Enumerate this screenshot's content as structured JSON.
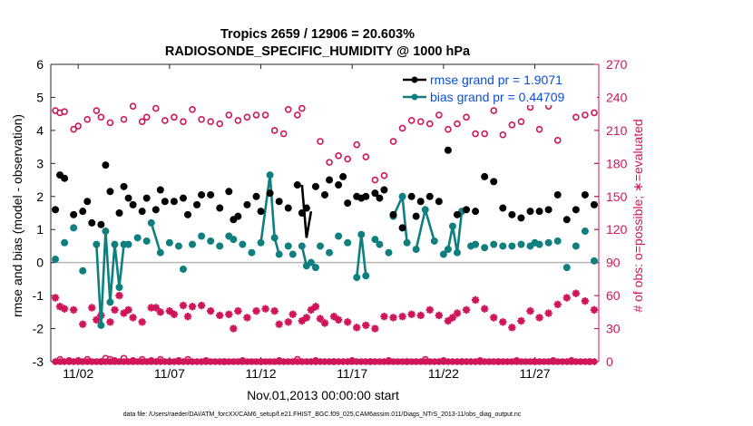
{
  "chart_data": {
    "type": "line",
    "title": "Tropics 2659 / 12906 = 20.603%",
    "subtitle": "RADIOSONDE_SPECIFIC_HUMIDITY @ 1000 hPa",
    "xlabel": "Nov.01,2013 00:00:00 start",
    "ylabel_left": "rmse and bias (model - observation)",
    "ylabel_right": "# of obs: o=possible; ∗=evaluated",
    "footnote": "data file: /Users/raeder/DAI/ATM_forcXX/CAM6_setup/f.e21.FHIST_BGC.f09_025.CAM6assim.011/Diags_NTrS_2013-11/obs_diag_output.nc",
    "xlim": [
      0.5,
      30.5
    ],
    "ylim_left": [
      -3,
      6
    ],
    "ylim_right": [
      0,
      270
    ],
    "xticks": [
      {
        "pos": 2,
        "label": "11/02"
      },
      {
        "pos": 7,
        "label": "11/07"
      },
      {
        "pos": 12,
        "label": "11/12"
      },
      {
        "pos": 17,
        "label": "11/17"
      },
      {
        "pos": 22,
        "label": "11/22"
      },
      {
        "pos": 27,
        "label": "11/27"
      }
    ],
    "yticks_left": [
      "-3",
      "-2",
      "-1",
      "0",
      "1",
      "2",
      "3",
      "4",
      "5",
      "6"
    ],
    "yticks_right": [
      "0",
      "30",
      "60",
      "90",
      "120",
      "150",
      "180",
      "210",
      "240",
      "270"
    ],
    "legend": [
      {
        "name": "rmse grand pr = 1.9071",
        "color": "#000000"
      },
      {
        "name": "bias grand pr = 0.44709",
        "color": "#0f7f7f"
      }
    ],
    "colors": {
      "rmse": "#000000",
      "bias": "#0f7f7f",
      "counts": "#d0145a",
      "zero_line": "#b4b4b4",
      "legend_text": "#0a4fd6"
    },
    "rmse": [
      [
        0.75,
        1.6
      ],
      [
        1.0,
        2.65
      ],
      [
        1.25,
        2.55
      ],
      [
        1.75,
        1.45
      ],
      [
        2.25,
        1.55
      ],
      [
        2.5,
        1.85
      ],
      [
        2.75,
        1.2
      ],
      [
        3.25,
        1.15
      ],
      [
        3.5,
        2.95
      ],
      [
        3.75,
        2.15
      ],
      [
        4.25,
        1.5
      ],
      [
        4.5,
        2.3
      ],
      [
        4.75,
        1.95
      ],
      [
        5.0,
        1.75
      ],
      [
        5.5,
        1.55
      ],
      [
        5.75,
        1.95
      ],
      [
        6.25,
        1.6
      ],
      [
        6.5,
        2.2
      ],
      [
        6.75,
        1.85
      ],
      [
        7.25,
        1.85
      ],
      [
        7.75,
        1.95
      ],
      [
        8.0,
        1.45
      ],
      [
        8.5,
        1.75
      ],
      [
        8.75,
        2.05
      ],
      [
        9.25,
        2.05
      ],
      [
        9.75,
        1.65
      ],
      [
        10.25,
        2.15
      ],
      [
        10.5,
        1.3
      ],
      [
        10.75,
        1.4
      ],
      [
        11.25,
        1.75
      ],
      [
        11.75,
        2.0
      ],
      [
        12.0,
        1.55
      ],
      [
        12.5,
        2.1
      ],
      [
        13.0,
        1.85
      ],
      [
        13.5,
        1.65
      ],
      [
        14.0,
        2.35
      ],
      [
        14.25,
        1.5
      ],
      [
        14.5,
        1.65
      ],
      [
        15.0,
        2.3
      ],
      [
        15.5,
        2.05
      ],
      [
        15.75,
        2.5
      ],
      [
        16.25,
        2.35
      ],
      [
        16.5,
        2.6
      ],
      [
        16.75,
        1.8
      ],
      [
        17.25,
        2.0
      ],
      [
        17.5,
        1.95
      ],
      [
        17.75,
        2.0
      ],
      [
        18.25,
        2.1
      ],
      [
        18.5,
        1.95
      ],
      [
        18.75,
        2.2
      ],
      [
        19.25,
        1.45
      ],
      [
        19.75,
        1.05
      ],
      [
        20.25,
        2.0
      ],
      [
        20.5,
        1.4
      ],
      [
        20.75,
        1.85
      ],
      [
        21.25,
        2.0
      ],
      [
        21.75,
        1.85
      ],
      [
        22.25,
        3.4
      ],
      [
        22.75,
        1.45
      ],
      [
        23.25,
        1.6
      ],
      [
        23.75,
        1.55
      ],
      [
        24.25,
        2.6
      ],
      [
        24.75,
        2.45
      ],
      [
        25.25,
        1.65
      ],
      [
        25.75,
        1.45
      ],
      [
        26.25,
        1.35
      ],
      [
        26.75,
        1.55
      ],
      [
        27.25,
        1.55
      ],
      [
        27.75,
        1.6
      ],
      [
        28.25,
        2.05
      ],
      [
        28.75,
        1.3
      ],
      [
        29.25,
        1.6
      ],
      [
        29.75,
        2.05
      ],
      [
        30.25,
        1.75
      ]
    ],
    "rmse_line": [
      [
        14.25,
        2.35
      ],
      [
        14.5,
        0.75
      ],
      [
        14.75,
        1.55
      ]
    ],
    "bias": [
      [
        0.75,
        0.1
      ],
      [
        1.25,
        0.6
      ],
      [
        1.75,
        1.05
      ],
      [
        2.25,
        -0.25
      ],
      [
        3.0,
        0.55
      ],
      [
        3.25,
        -1.9
      ],
      [
        3.5,
        0.95
      ],
      [
        3.75,
        -1.2
      ],
      [
        4.0,
        0.55
      ],
      [
        4.25,
        -0.75
      ],
      [
        4.5,
        0.55
      ],
      [
        4.75,
        0.55
      ],
      [
        5.25,
        0.75
      ],
      [
        5.75,
        0.65
      ],
      [
        6.0,
        1.2
      ],
      [
        6.5,
        0.3
      ],
      [
        7.0,
        0.6
      ],
      [
        7.5,
        0.5
      ],
      [
        7.75,
        -0.2
      ],
      [
        8.25,
        0.55
      ],
      [
        8.75,
        0.8
      ],
      [
        9.25,
        0.65
      ],
      [
        9.75,
        0.5
      ],
      [
        10.25,
        0.8
      ],
      [
        10.5,
        0.7
      ],
      [
        11.0,
        0.55
      ],
      [
        11.5,
        0.3
      ],
      [
        12.0,
        0.6
      ],
      [
        12.5,
        2.65
      ],
      [
        12.75,
        0.75
      ],
      [
        13.0,
        0.25
      ],
      [
        13.5,
        0.5
      ],
      [
        13.75,
        0.25
      ],
      [
        14.25,
        0.5
      ],
      [
        14.5,
        -0.1
      ],
      [
        14.75,
        0.0
      ],
      [
        15.0,
        -0.15
      ],
      [
        15.25,
        0.5
      ],
      [
        15.75,
        0.3
      ],
      [
        16.25,
        0.8
      ],
      [
        16.75,
        0.6
      ],
      [
        17.25,
        -0.45
      ],
      [
        17.5,
        0.85
      ],
      [
        17.75,
        -0.4
      ],
      [
        18.25,
        0.7
      ],
      [
        18.5,
        0.55
      ],
      [
        19.0,
        0.3
      ],
      [
        19.25,
        1.4
      ],
      [
        19.75,
        2.0
      ],
      [
        20.0,
        0.6
      ],
      [
        20.5,
        0.4
      ],
      [
        21.0,
        1.6
      ],
      [
        21.5,
        0.65
      ],
      [
        22.0,
        0.25
      ],
      [
        22.25,
        0.4
      ],
      [
        22.5,
        1.1
      ],
      [
        22.75,
        0.3
      ],
      [
        23.0,
        1.55
      ],
      [
        23.5,
        0.5
      ],
      [
        23.75,
        0.55
      ],
      [
        24.25,
        0.45
      ],
      [
        24.75,
        0.55
      ],
      [
        25.25,
        0.5
      ],
      [
        25.75,
        0.5
      ],
      [
        26.25,
        0.55
      ],
      [
        26.75,
        0.5
      ],
      [
        27.0,
        0.6
      ],
      [
        27.25,
        0.55
      ],
      [
        27.75,
        0.6
      ],
      [
        28.25,
        0.65
      ],
      [
        28.75,
        -0.15
      ],
      [
        29.25,
        0.5
      ],
      [
        29.75,
        0.95
      ],
      [
        30.25,
        0.05
      ]
    ],
    "bias_lines": [
      [
        [
          3.0,
          0.55
        ],
        [
          3.25,
          -1.9
        ],
        [
          3.5,
          0.95
        ],
        [
          3.75,
          -1.2
        ],
        [
          4.0,
          0.55
        ],
        [
          4.25,
          -0.75
        ],
        [
          4.5,
          0.55
        ]
      ],
      [
        [
          6.0,
          1.2
        ],
        [
          6.5,
          0.3
        ]
      ],
      [
        [
          12.0,
          0.6
        ],
        [
          12.5,
          2.65
        ],
        [
          12.75,
          0.75
        ],
        [
          13.0,
          0.25
        ]
      ],
      [
        [
          14.25,
          0.5
        ],
        [
          14.5,
          -0.1
        ],
        [
          14.75,
          0.0
        ],
        [
          15.0,
          -0.15
        ]
      ],
      [
        [
          17.25,
          -0.45
        ],
        [
          17.5,
          0.85
        ],
        [
          17.75,
          -0.4
        ]
      ],
      [
        [
          19.25,
          1.4
        ],
        [
          19.75,
          2.0
        ],
        [
          20.0,
          0.6
        ]
      ],
      [
        [
          20.5,
          0.4
        ],
        [
          21.0,
          1.6
        ],
        [
          21.5,
          0.65
        ]
      ],
      [
        [
          22.0,
          0.25
        ],
        [
          22.25,
          0.4
        ],
        [
          22.5,
          1.1
        ],
        [
          22.75,
          0.3
        ],
        [
          23.0,
          1.55
        ]
      ]
    ],
    "possible": [
      [
        0.75,
        228
      ],
      [
        1.0,
        226
      ],
      [
        1.25,
        227
      ],
      [
        1.75,
        211
      ],
      [
        2.0,
        214
      ],
      [
        2.5,
        220
      ],
      [
        3.0,
        228
      ],
      [
        3.25,
        222
      ],
      [
        3.75,
        217
      ],
      [
        4.5,
        220
      ],
      [
        5.0,
        232
      ],
      [
        5.5,
        218
      ],
      [
        5.75,
        222
      ],
      [
        6.25,
        230
      ],
      [
        6.75,
        219
      ],
      [
        7.25,
        222
      ],
      [
        7.75,
        218
      ],
      [
        8.25,
        229
      ],
      [
        8.75,
        220
      ],
      [
        9.25,
        218
      ],
      [
        9.75,
        216
      ],
      [
        10.25,
        224
      ],
      [
        10.75,
        219
      ],
      [
        11.25,
        222
      ],
      [
        11.75,
        224
      ],
      [
        12.25,
        224
      ],
      [
        12.75,
        210
      ],
      [
        13.25,
        207
      ],
      [
        13.5,
        229
      ],
      [
        14.0,
        224
      ],
      [
        14.25,
        230
      ],
      [
        15.25,
        200
      ],
      [
        15.75,
        181
      ],
      [
        16.25,
        187
      ],
      [
        16.75,
        184
      ],
      [
        17.25,
        197
      ],
      [
        17.75,
        186
      ],
      [
        18.25,
        165
      ],
      [
        18.75,
        169
      ],
      [
        19.25,
        200
      ],
      [
        19.75,
        212
      ],
      [
        20.25,
        219
      ],
      [
        20.75,
        218
      ],
      [
        21.25,
        216
      ],
      [
        21.75,
        224
      ],
      [
        22.25,
        211
      ],
      [
        22.75,
        216
      ],
      [
        23.25,
        222
      ],
      [
        23.75,
        207
      ],
      [
        24.25,
        207
      ],
      [
        24.75,
        228
      ],
      [
        25.25,
        206
      ],
      [
        25.75,
        215
      ],
      [
        26.25,
        218
      ],
      [
        26.75,
        231
      ],
      [
        27.25,
        211
      ],
      [
        27.75,
        232
      ],
      [
        28.25,
        201
      ],
      [
        28.75,
        236
      ],
      [
        29.25,
        222
      ],
      [
        29.75,
        224
      ],
      [
        30.25,
        226
      ]
    ],
    "evaluated": [
      [
        0.75,
        58
      ],
      [
        1.0,
        50
      ],
      [
        1.25,
        48
      ],
      [
        1.75,
        47
      ],
      [
        2.25,
        34
      ],
      [
        2.75,
        49
      ],
      [
        3.0,
        38
      ],
      [
        3.25,
        42
      ],
      [
        3.75,
        36
      ],
      [
        4.0,
        47
      ],
      [
        4.25,
        60
      ],
      [
        4.5,
        44
      ],
      [
        4.75,
        47
      ],
      [
        5.0,
        40
      ],
      [
        5.5,
        36
      ],
      [
        6.0,
        49
      ],
      [
        6.25,
        49
      ],
      [
        6.5,
        45
      ],
      [
        7.0,
        46
      ],
      [
        7.25,
        43
      ],
      [
        7.75,
        51
      ],
      [
        8.0,
        41
      ],
      [
        8.25,
        50
      ],
      [
        8.75,
        51
      ],
      [
        9.25,
        46
      ],
      [
        9.75,
        42
      ],
      [
        10.25,
        43
      ],
      [
        10.5,
        30
      ],
      [
        10.75,
        46
      ],
      [
        11.25,
        40
      ],
      [
        11.75,
        46
      ],
      [
        12.25,
        48
      ],
      [
        12.75,
        46
      ],
      [
        13.0,
        34
      ],
      [
        13.5,
        36
      ],
      [
        13.75,
        43
      ],
      [
        14.25,
        37
      ],
      [
        14.5,
        40
      ],
      [
        14.75,
        47
      ],
      [
        15.0,
        50
      ],
      [
        15.25,
        39
      ],
      [
        15.5,
        35
      ],
      [
        16.0,
        41
      ],
      [
        16.25,
        38
      ],
      [
        16.75,
        36
      ],
      [
        17.25,
        31
      ],
      [
        17.75,
        33
      ],
      [
        18.25,
        30
      ],
      [
        18.75,
        41
      ],
      [
        19.25,
        40
      ],
      [
        19.75,
        41
      ],
      [
        20.25,
        43
      ],
      [
        20.75,
        42
      ],
      [
        21.25,
        47
      ],
      [
        21.75,
        42
      ],
      [
        22.25,
        37
      ],
      [
        22.5,
        40
      ],
      [
        22.75,
        44
      ],
      [
        23.25,
        47
      ],
      [
        23.75,
        56
      ],
      [
        24.25,
        48
      ],
      [
        24.75,
        40
      ],
      [
        25.25,
        36
      ],
      [
        25.75,
        31
      ],
      [
        26.25,
        37
      ],
      [
        26.75,
        46
      ],
      [
        27.25,
        40
      ],
      [
        27.75,
        44
      ],
      [
        28.25,
        52
      ],
      [
        28.75,
        58
      ],
      [
        29.25,
        62
      ],
      [
        29.75,
        55
      ],
      [
        30.25,
        47
      ]
    ],
    "possible_bottom": [
      [
        1.0,
        2
      ],
      [
        1.5,
        1
      ],
      [
        2.0,
        1
      ],
      [
        2.5,
        2
      ],
      [
        3.25,
        0
      ],
      [
        3.5,
        3
      ],
      [
        3.75,
        2
      ],
      [
        4.0,
        1
      ],
      [
        4.5,
        3
      ],
      [
        5.0,
        1
      ],
      [
        5.5,
        2
      ],
      [
        6.0,
        1
      ],
      [
        6.5,
        2
      ],
      [
        7.0,
        0
      ],
      [
        7.5,
        1
      ],
      [
        8.0,
        2
      ],
      [
        9.0,
        1
      ],
      [
        10.0,
        0
      ],
      [
        11.0,
        1
      ],
      [
        12.0,
        0
      ],
      [
        13.0,
        1
      ],
      [
        14.0,
        2
      ],
      [
        15.0,
        1
      ],
      [
        16.0,
        0
      ],
      [
        17.0,
        1
      ],
      [
        18.0,
        0
      ],
      [
        19.0,
        1
      ],
      [
        20.0,
        0
      ],
      [
        21.0,
        2
      ],
      [
        22.0,
        1
      ],
      [
        23.0,
        0
      ],
      [
        24.0,
        1
      ],
      [
        25.0,
        0
      ],
      [
        26.0,
        1
      ],
      [
        27.0,
        0
      ],
      [
        28.0,
        1
      ],
      [
        29.0,
        1
      ],
      [
        30.0,
        0
      ]
    ],
    "evaluated_bottom_every": 0.25
  }
}
